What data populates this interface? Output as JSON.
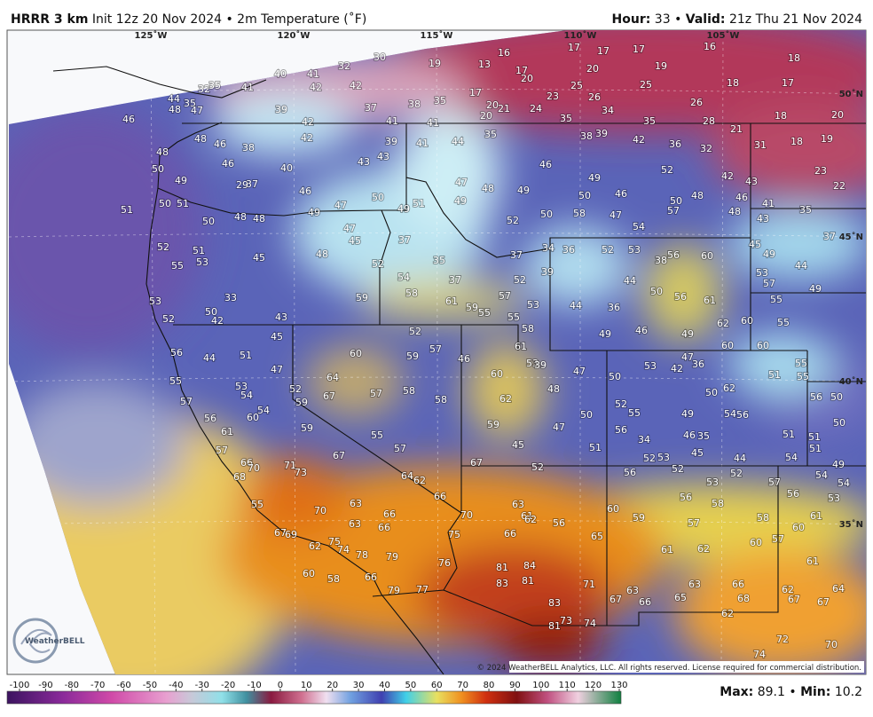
{
  "header": {
    "model": "HRRR 3 km",
    "description": "Init 12z 20 Nov 2024 • 2m Temperature (˚F)",
    "hour_label": "Hour:",
    "hour": "33",
    "separator": "•",
    "valid_label": "Valid:",
    "valid": "21z Thu 21 Nov 2024"
  },
  "map": {
    "longitude_labels": [
      "125˚W",
      "120˚W",
      "115˚W",
      "110˚W",
      "105˚W"
    ],
    "latitude_labels": [
      "50˚N",
      "45˚N",
      "40˚N",
      "35˚N"
    ],
    "temperatures": [
      30,
      19,
      16,
      13,
      17,
      17,
      17,
      16,
      18,
      32,
      40,
      41,
      17,
      20,
      20,
      19,
      42,
      42,
      41,
      32,
      35,
      17,
      23,
      25,
      26,
      25,
      18,
      17,
      35,
      20,
      21,
      24,
      34,
      26,
      39,
      37,
      38,
      44,
      35,
      47,
      48,
      46,
      20,
      35,
      35,
      28,
      18,
      20,
      21,
      41,
      41,
      42,
      42,
      35,
      38,
      39,
      42,
      36,
      32,
      31,
      18,
      19,
      48,
      46,
      38,
      41,
      44,
      39,
      48,
      43,
      43,
      46,
      40,
      46,
      52,
      42,
      43,
      23,
      50,
      49,
      37,
      29,
      46,
      47,
      48,
      49,
      49,
      46,
      22,
      50,
      51,
      50,
      46,
      50,
      50,
      48,
      51,
      50,
      48,
      48,
      49,
      47,
      49,
      51,
      49,
      52,
      50,
      58,
      47,
      57,
      48,
      41,
      35,
      43,
      47,
      45,
      37,
      54,
      37,
      52,
      51,
      53,
      45,
      48,
      52,
      35,
      37,
      34,
      36,
      52,
      53,
      56,
      38,
      60,
      45,
      49,
      44,
      55,
      59,
      54,
      58,
      37,
      52,
      39,
      44,
      50,
      56,
      61,
      53,
      57,
      49,
      53,
      33,
      61,
      59,
      55,
      57,
      55,
      53,
      44,
      36,
      55,
      50,
      52,
      42,
      43,
      58,
      52,
      49,
      46,
      49,
      62,
      60,
      55,
      45,
      57,
      61,
      60,
      60,
      56,
      44,
      51,
      60,
      59,
      46,
      53,
      39,
      53,
      42,
      47,
      36,
      55,
      55,
      47,
      64,
      57,
      58,
      60,
      47,
      50,
      51,
      55,
      53,
      54,
      52,
      59,
      67,
      58,
      62,
      48,
      50,
      62,
      57,
      56,
      50,
      52,
      55,
      49,
      54,
      56,
      56,
      60,
      54,
      50,
      59,
      47,
      50,
      61,
      59,
      55,
      56,
      34,
      46,
      35,
      51,
      57,
      57,
      45,
      51,
      51,
      51,
      67,
      52,
      53,
      45,
      44,
      54,
      49,
      67,
      52,
      66,
      70,
      71,
      73,
      56,
      52,
      52,
      54,
      64,
      62,
      68,
      53,
      57,
      54,
      66,
      56,
      56,
      53,
      63,
      63,
      55,
      70,
      66,
      70,
      60,
      58,
      61,
      62,
      56,
      59,
      58,
      61,
      75,
      63,
      66,
      57,
      60,
      67,
      69,
      66,
      65,
      57,
      60,
      75,
      62,
      74,
      78,
      79,
      61,
      62,
      76,
      81,
      84,
      61,
      60,
      58,
      66,
      83,
      81,
      71,
      63,
      66,
      63,
      62,
      64,
      79,
      77,
      67,
      66,
      65,
      68,
      67,
      67,
      83,
      73,
      74,
      81,
      62,
      72,
      70,
      74
    ],
    "logo": "WeatherBELL",
    "copyright": "© 2024 WeatherBELL Analytics, LLC. All rights reserved. License required for commercial distribution."
  },
  "colorbar": {
    "ticks": [
      -100,
      -90,
      -80,
      -70,
      -60,
      -50,
      -40,
      -30,
      -20,
      -10,
      0,
      10,
      20,
      30,
      40,
      50,
      60,
      70,
      80,
      90,
      100,
      110,
      120,
      130
    ]
  },
  "footer": {
    "max_label": "Max:",
    "max": "89.1",
    "separator": "•",
    "min_label": "Min:",
    "min": "10.2"
  }
}
